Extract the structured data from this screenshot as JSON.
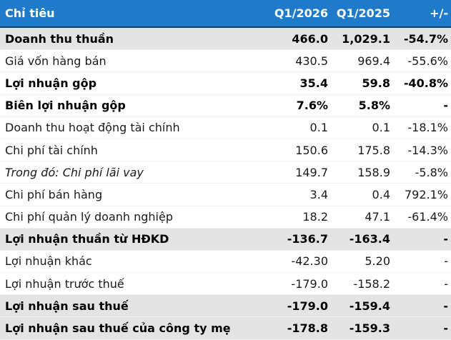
{
  "table": {
    "header": [
      "Chỉ tiêu",
      "Q1/2026",
      "Q1/2025",
      "+/-"
    ],
    "rows": [
      [
        "Doanh thu thuần",
        "466.0",
        "1,029.1",
        "-54.7%"
      ],
      [
        "Giá vốn hàng bán",
        "430.5",
        "969.4",
        "-55.6%"
      ],
      [
        "Lợi nhuận gộp",
        "35.4",
        "59.8",
        "-40.8%"
      ],
      [
        "Biên lợi nhuận gộp",
        "7.6%",
        "5.8%",
        "-"
      ],
      [
        "Doanh thu hoạt động tài chính",
        "0.1",
        "0.1",
        "-18.1%"
      ],
      [
        "Chi phí tài chính",
        "150.6",
        "175.8",
        "-14.3%"
      ],
      [
        "Trong đó: Chi phí lãi vay",
        "149.7",
        "158.9",
        "-5.8%"
      ],
      [
        "Chi phí bán hàng",
        "3.4",
        "0.4",
        "792.1%"
      ],
      [
        "Chi phí quản lý doanh nghiệp",
        "18.2",
        "47.1",
        "-61.4%"
      ],
      [
        "Lợi nhuận thuần từ HĐKD",
        "-136.7",
        "-163.4",
        "-"
      ],
      [
        "Lợi nhuận khác",
        "-42.30",
        "5.20",
        "-"
      ],
      [
        "Lợi nhuận trước thuế",
        "-179.0",
        "-158.2",
        "-"
      ],
      [
        "Lợi nhuận sau thuế",
        "-179.0",
        "-159.4",
        "-"
      ],
      [
        "Lợi nhuận sau thuế của công ty mẹ",
        "-178.8",
        "-159.3",
        "-"
      ]
    ]
  }
}
